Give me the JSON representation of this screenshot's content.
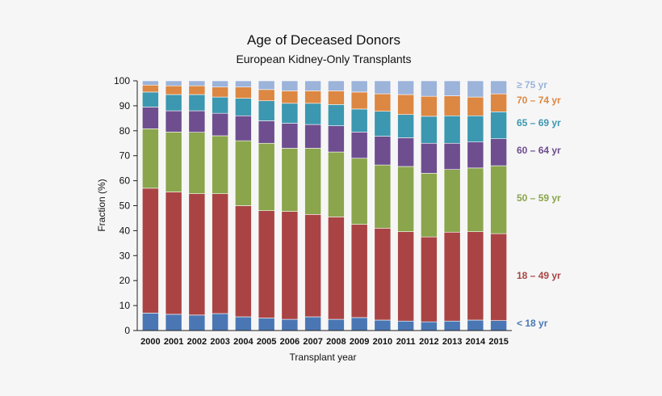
{
  "chart_data": {
    "type": "bar",
    "stacked": true,
    "title": "Age of Deceased Donors",
    "subtitle": "European Kidney-Only Transplants",
    "xlabel": "Transplant year",
    "ylabel": "Fraction (%)",
    "ylim": [
      0,
      100
    ],
    "yticks": [
      0,
      10,
      20,
      30,
      40,
      50,
      60,
      70,
      80,
      90,
      100
    ],
    "legend_position": "right",
    "categories": [
      "2000",
      "2001",
      "2002",
      "2003",
      "2004",
      "2005",
      "2006",
      "2007",
      "2008",
      "2009",
      "2010",
      "2011",
      "2012",
      "2013",
      "2014",
      "2015"
    ],
    "series": [
      {
        "name": "< 18 yr",
        "color": "#4a77b4",
        "values": [
          7.0,
          6.5,
          6.2,
          6.8,
          5.5,
          5.0,
          4.5,
          5.5,
          4.5,
          5.2,
          4.2,
          3.8,
          3.5,
          3.8,
          4.2,
          4.0
        ]
      },
      {
        "name": "18 – 49 yr",
        "color": "#aa4444",
        "values": [
          50.0,
          49.0,
          48.6,
          48.0,
          44.5,
          43.0,
          43.2,
          41.0,
          41.0,
          37.3,
          36.8,
          35.8,
          34.0,
          35.6,
          35.4,
          34.8
        ]
      },
      {
        "name": "50 – 59 yr",
        "color": "#8aa54c",
        "values": [
          23.8,
          24.0,
          24.6,
          23.2,
          26.0,
          27.0,
          25.3,
          26.5,
          26.0,
          26.5,
          25.3,
          26.1,
          25.5,
          25.1,
          25.5,
          27.2
        ]
      },
      {
        "name": "60 – 64 yr",
        "color": "#6e4e8f",
        "values": [
          8.7,
          8.5,
          8.6,
          9.0,
          10.0,
          9.0,
          10.0,
          9.5,
          10.5,
          10.5,
          11.5,
          11.5,
          12.0,
          10.5,
          10.4,
          10.8
        ]
      },
      {
        "name": "65 – 69 yr",
        "color": "#3c97b0",
        "values": [
          6.0,
          6.5,
          6.5,
          6.5,
          7.0,
          8.0,
          8.0,
          8.5,
          8.5,
          9.2,
          10.0,
          9.3,
          10.8,
          11.0,
          10.5,
          10.8
        ]
      },
      {
        "name": "70 – 74 yr",
        "color": "#dc8742",
        "values": [
          2.8,
          3.5,
          3.5,
          4.0,
          4.5,
          4.5,
          5.0,
          5.0,
          5.5,
          6.8,
          7.0,
          8.0,
          8.0,
          8.0,
          7.5,
          7.2
        ]
      },
      {
        "name": "≥ 75 yr",
        "color": "#9cb3da",
        "values": [
          1.7,
          2.0,
          2.0,
          2.5,
          2.5,
          3.5,
          4.0,
          4.0,
          4.0,
          4.5,
          5.2,
          5.5,
          6.2,
          6.0,
          6.5,
          5.2
        ]
      }
    ]
  }
}
